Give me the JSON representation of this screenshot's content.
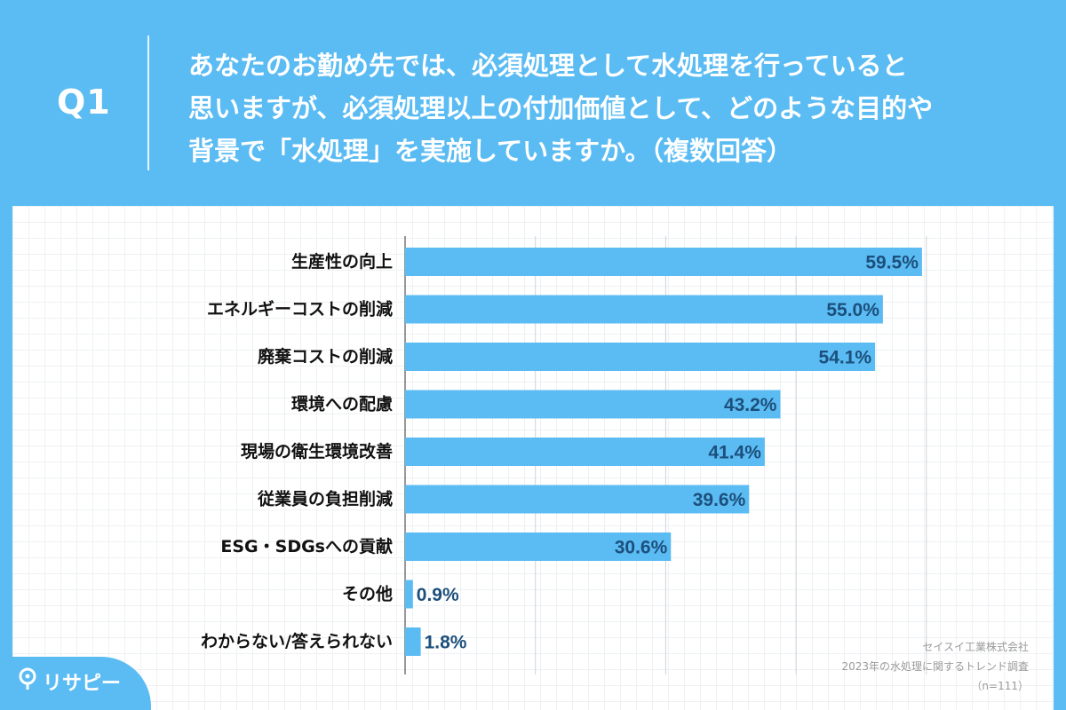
{
  "header": {
    "q_label": "Q1",
    "question": "あなたのお勤め先では、必須処理として水処理を行っていると\n思いますが、必須処理以上の付加価値として、どのような目的や\n背景で「水処理」を実施していますか。（複数回答）"
  },
  "source": {
    "company": "セイスイ工業株式会社",
    "survey": "2023年の水処理に関するトレンド調査",
    "n": "（n=111）"
  },
  "logo": {
    "text": "リサピー",
    "icon": "pin-icon"
  },
  "colors": {
    "background": "#5bbcf3",
    "bar": "#5bbcf3",
    "value_label": "#1c4f7c",
    "category_label": "#111111"
  },
  "chart_data": {
    "type": "bar",
    "orientation": "horizontal",
    "categories": [
      "生産性の向上",
      "エネルギーコストの削減",
      "廃棄コストの削減",
      "環境への配慮",
      "現場の衛生環境改善",
      "従業員の負担削減",
      "ESG・SDGsへの貢献",
      "その他",
      "わからない/答えられない"
    ],
    "values": [
      59.5,
      55.0,
      54.1,
      43.2,
      41.4,
      39.6,
      30.6,
      0.9,
      1.8
    ],
    "value_labels": [
      "59.5%",
      "55.0%",
      "54.1%",
      "43.2%",
      "41.4%",
      "39.6%",
      "30.6%",
      "0.9%",
      "1.8%"
    ],
    "xlim": [
      0,
      60
    ],
    "x_gridlines": [
      0,
      15,
      30,
      45,
      60
    ],
    "grid": true
  }
}
